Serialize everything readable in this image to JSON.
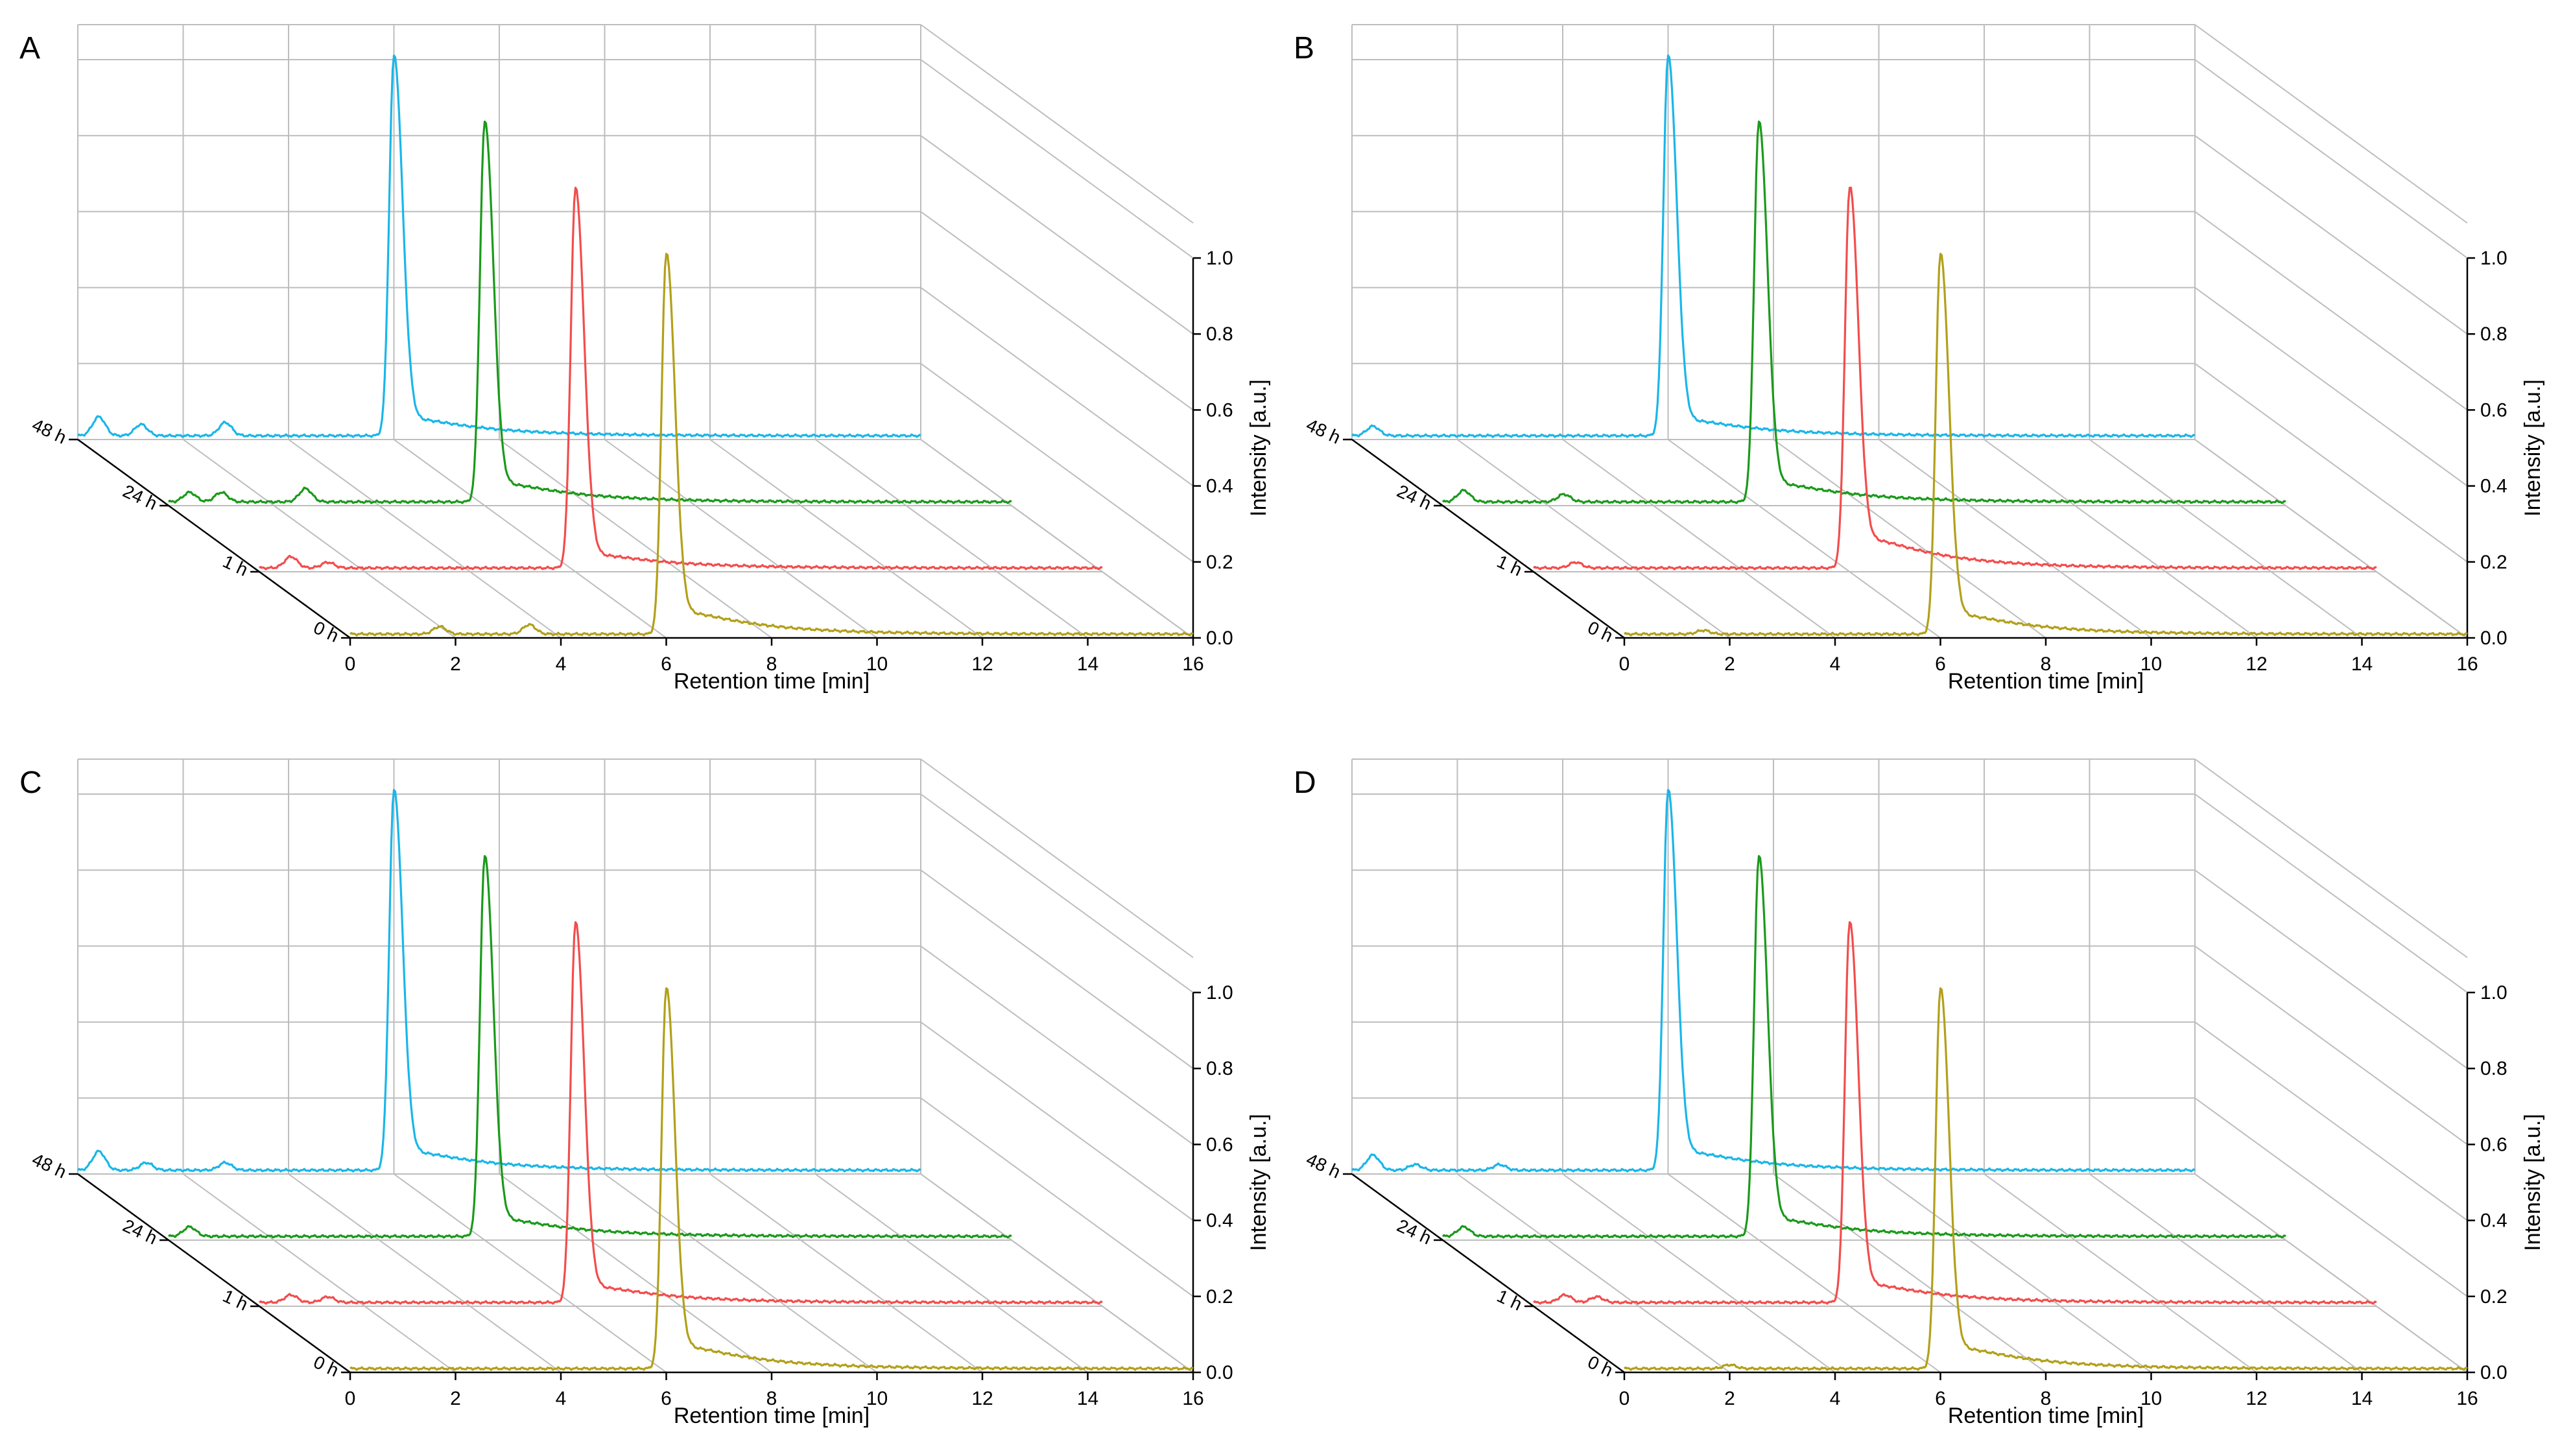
{
  "chart_data": [
    {
      "panel": "A",
      "type": "line",
      "xlabel": "Retention time [min]",
      "ylabel": "Intensity [a.u.]",
      "xlim": [
        0,
        16
      ],
      "ylim": [
        0.0,
        1.0
      ],
      "x_ticks": [
        "0",
        "2",
        "4",
        "6",
        "8",
        "10",
        "12",
        "14",
        "16"
      ],
      "y_ticks": [
        "0.0",
        "0.2",
        "0.4",
        "0.6",
        "0.8",
        "1.0"
      ],
      "z_ticks": [
        "48 h",
        "24 h",
        "1 h",
        "0 h"
      ],
      "grid": true,
      "series": [
        {
          "name": "48 h",
          "color": "#1ab6e8",
          "baseline": 0.01,
          "peak_rt": 6.0,
          "peak": 1.0,
          "tail": 0.07,
          "minor": [
            [
              0.4,
              0.05
            ],
            [
              1.2,
              0.03
            ],
            [
              2.8,
              0.035
            ]
          ]
        },
        {
          "name": "24 h",
          "color": "#1a9a1a",
          "baseline": 0.01,
          "peak_rt": 6.0,
          "peak": 1.0,
          "tail": 0.075,
          "minor": [
            [
              0.4,
              0.025
            ],
            [
              1.0,
              0.025
            ],
            [
              2.6,
              0.035
            ]
          ]
        },
        {
          "name": "1 h",
          "color": "#f24d4d",
          "baseline": 0.01,
          "peak_rt": 6.0,
          "peak": 1.0,
          "tail": 0.055,
          "minor": [
            [
              0.6,
              0.03
            ],
            [
              1.3,
              0.015
            ]
          ]
        },
        {
          "name": "0 h",
          "color": "#b2a01a",
          "baseline": 0.01,
          "peak_rt": 6.0,
          "peak": 1.0,
          "tail": 0.09,
          "minor": [
            [
              1.7,
              0.02
            ],
            [
              3.4,
              0.025
            ]
          ]
        }
      ]
    },
    {
      "panel": "B",
      "type": "line",
      "xlabel": "Retention time [min]",
      "ylabel": "Intensity [a.u.]",
      "xlim": [
        0,
        16
      ],
      "ylim": [
        0.0,
        1.0
      ],
      "x_ticks": [
        "0",
        "2",
        "4",
        "6",
        "8",
        "10",
        "12",
        "14",
        "16"
      ],
      "y_ticks": [
        "0.0",
        "0.2",
        "0.4",
        "0.6",
        "0.8",
        "1.0"
      ],
      "z_ticks": [
        "48 h",
        "24 h",
        "1 h",
        "0 h"
      ],
      "grid": true,
      "series": [
        {
          "name": "48 h",
          "color": "#1ab6e8",
          "baseline": 0.01,
          "peak_rt": 6.0,
          "peak": 1.0,
          "tail": 0.065,
          "minor": [
            [
              0.4,
              0.025
            ]
          ]
        },
        {
          "name": "24 h",
          "color": "#1a9a1a",
          "baseline": 0.01,
          "peak_rt": 6.0,
          "peak": 1.0,
          "tail": 0.075,
          "minor": [
            [
              0.4,
              0.03
            ],
            [
              2.3,
              0.02
            ]
          ]
        },
        {
          "name": "1 h",
          "color": "#f24d4d",
          "baseline": 0.01,
          "peak_rt": 6.0,
          "peak": 1.0,
          "tail": 0.12,
          "minor": [
            [
              0.8,
              0.015
            ]
          ]
        },
        {
          "name": "0 h",
          "color": "#b2a01a",
          "baseline": 0.01,
          "peak_rt": 6.0,
          "peak": 1.0,
          "tail": 0.08,
          "minor": [
            [
              1.5,
              0.01
            ]
          ]
        }
      ]
    },
    {
      "panel": "C",
      "type": "line",
      "xlabel": "Retention time [min]",
      "ylabel": "Intensity [a.u.]",
      "xlim": [
        0,
        16
      ],
      "ylim": [
        0.0,
        1.0
      ],
      "x_ticks": [
        "0",
        "2",
        "4",
        "6",
        "8",
        "10",
        "12",
        "14",
        "16"
      ],
      "y_ticks": [
        "0.0",
        "0.2",
        "0.4",
        "0.6",
        "0.8",
        "1.0"
      ],
      "z_ticks": [
        "48 h",
        "24 h",
        "1 h",
        "0 h"
      ],
      "grid": true,
      "series": [
        {
          "name": "48 h",
          "color": "#1ab6e8",
          "baseline": 0.01,
          "peak_rt": 6.0,
          "peak": 1.0,
          "tail": 0.075,
          "minor": [
            [
              0.4,
              0.05
            ],
            [
              1.3,
              0.02
            ],
            [
              2.8,
              0.02
            ]
          ]
        },
        {
          "name": "24 h",
          "color": "#1a9a1a",
          "baseline": 0.01,
          "peak_rt": 6.0,
          "peak": 1.0,
          "tail": 0.07,
          "minor": [
            [
              0.4,
              0.025
            ]
          ]
        },
        {
          "name": "1 h",
          "color": "#f24d4d",
          "baseline": 0.01,
          "peak_rt": 6.0,
          "peak": 1.0,
          "tail": 0.065,
          "minor": [
            [
              0.6,
              0.02
            ],
            [
              1.3,
              0.015
            ]
          ]
        },
        {
          "name": "0 h",
          "color": "#b2a01a",
          "baseline": 0.01,
          "peak_rt": 6.0,
          "peak": 1.0,
          "tail": 0.09,
          "minor": []
        }
      ]
    },
    {
      "panel": "D",
      "type": "line",
      "xlabel": "Retention time [min]",
      "ylabel": "Intensity [a.u.]",
      "xlim": [
        0,
        16
      ],
      "ylim": [
        0.0,
        1.0
      ],
      "x_ticks": [
        "0",
        "2",
        "4",
        "6",
        "8",
        "10",
        "12",
        "14",
        "16"
      ],
      "y_ticks": [
        "0.0",
        "0.2",
        "0.4",
        "0.6",
        "0.8",
        "1.0"
      ],
      "z_ticks": [
        "48 h",
        "24 h",
        "1 h",
        "0 h"
      ],
      "grid": true,
      "series": [
        {
          "name": "48 h",
          "color": "#1ab6e8",
          "baseline": 0.01,
          "peak_rt": 6.0,
          "peak": 1.0,
          "tail": 0.075,
          "minor": [
            [
              0.4,
              0.04
            ],
            [
              1.2,
              0.015
            ],
            [
              2.8,
              0.015
            ]
          ]
        },
        {
          "name": "24 h",
          "color": "#1a9a1a",
          "baseline": 0.01,
          "peak_rt": 6.0,
          "peak": 1.0,
          "tail": 0.07,
          "minor": [
            [
              0.4,
              0.025
            ]
          ]
        },
        {
          "name": "1 h",
          "color": "#f24d4d",
          "baseline": 0.01,
          "peak_rt": 6.0,
          "peak": 1.0,
          "tail": 0.075,
          "minor": [
            [
              0.6,
              0.02
            ],
            [
              1.2,
              0.015
            ]
          ]
        },
        {
          "name": "0 h",
          "color": "#b2a01a",
          "baseline": 0.01,
          "peak_rt": 6.0,
          "peak": 1.0,
          "tail": 0.085,
          "minor": [
            [
              2.0,
              0.01
            ]
          ]
        }
      ]
    }
  ]
}
